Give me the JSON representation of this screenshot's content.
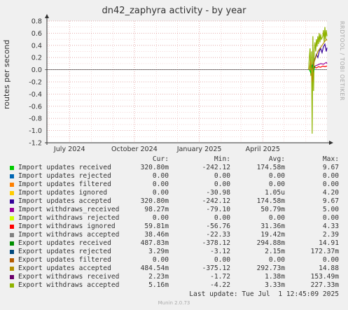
{
  "title": "dn42_zaphyra activity - by year",
  "watermark": "RRDTOOL / TOBI OETIKER",
  "footer": "Munin 2.0.73",
  "last_update": "Last update: Tue Jul  1 12:45:09 2025",
  "legend_headers": {
    "cur": "Cur:",
    "min": "Min:",
    "avg": "Avg:",
    "max": "Max:"
  },
  "legend": [
    {
      "name": "Import updates received",
      "color": "#00cc00",
      "cur": "320.80m",
      "min": "-242.12",
      "avg": "174.58m",
      "max": "9.67"
    },
    {
      "name": "Import updates rejected",
      "color": "#0066b3",
      "cur": "0.00",
      "min": "0.00",
      "avg": "0.00",
      "max": "0.00"
    },
    {
      "name": "Import updates filtered",
      "color": "#ff8000",
      "cur": "0.00",
      "min": "0.00",
      "avg": "0.00",
      "max": "0.00"
    },
    {
      "name": "Import updates ignored",
      "color": "#ffcc00",
      "cur": "0.00",
      "min": "-30.98",
      "avg": "1.05u",
      "max": "4.20"
    },
    {
      "name": "Import updates accepted",
      "color": "#330099",
      "cur": "320.80m",
      "min": "-242.12",
      "avg": "174.58m",
      "max": "9.67"
    },
    {
      "name": "Import withdraws_received",
      "color": "#990099",
      "cur": "98.27m",
      "min": "-79.10",
      "avg": "50.79m",
      "max": "5.00"
    },
    {
      "name": "Import withdraws rejected",
      "color": "#ccff00",
      "cur": "0.00",
      "min": "0.00",
      "avg": "0.00",
      "max": "0.00"
    },
    {
      "name": "Import withdraws ignored",
      "color": "#ff0000",
      "cur": "59.81m",
      "min": "-56.76",
      "avg": "31.36m",
      "max": "4.33"
    },
    {
      "name": "Import withdraws accepted",
      "color": "#808080",
      "cur": "38.46m",
      "min": "-22.33",
      "avg": "19.42m",
      "max": "2.39"
    },
    {
      "name": "Export updates received",
      "color": "#008f00",
      "cur": "487.83m",
      "min": "-378.12",
      "avg": "294.88m",
      "max": "14.91"
    },
    {
      "name": "Export updates rejected",
      "color": "#00487d",
      "cur": "3.29m",
      "min": "-3.12",
      "avg": "2.15m",
      "max": "172.37m"
    },
    {
      "name": "Export updates filtered",
      "color": "#b35a00",
      "cur": "0.00",
      "min": "0.00",
      "avg": "0.00",
      "max": "0.00"
    },
    {
      "name": "Export updates accepted",
      "color": "#b38f00",
      "cur": "484.54m",
      "min": "-375.12",
      "avg": "292.73m",
      "max": "14.88"
    },
    {
      "name": "Export withdraws received",
      "color": "#6b006b",
      "cur": "2.23m",
      "min": "-1.72",
      "avg": "1.38m",
      "max": "153.49m"
    },
    {
      "name": "Export withdraws accepted",
      "color": "#8fb300",
      "cur": "5.16m",
      "min": "-4.22",
      "avg": "3.33m",
      "max": "227.33m"
    }
  ],
  "chart_data": {
    "type": "line",
    "title": "dn42_zaphyra activity - by year",
    "xlabel": "",
    "ylabel": "routes per second",
    "ylim": [
      -1.2,
      0.8
    ],
    "yticks": [
      0.8,
      0.6,
      0.4,
      0.2,
      0.0,
      -0.2,
      -0.4,
      -0.6,
      -0.8,
      -1.0,
      -1.2
    ],
    "ytick_labels": [
      "0.8",
      "0.6",
      "0.4",
      "0.2",
      "0.0",
      "-0.2",
      "-0.4",
      "-0.6",
      "-0.8",
      "-1.0",
      "-1.2"
    ],
    "xlim": [
      "2024-05-30",
      "2025-07-01"
    ],
    "xticks": [
      "2024-07-01",
      "2024-10-01",
      "2025-01-01",
      "2025-04-01"
    ],
    "xtick_labels": [
      "July 2024",
      "October 2024",
      "January 2025",
      "April 2025"
    ],
    "grid": true,
    "series": [
      {
        "name": "Export withdraws accepted",
        "color": "#8fb300",
        "x": [
          "2025-06-05",
          "2025-06-06",
          "2025-06-07",
          "2025-06-08",
          "2025-06-09",
          "2025-06-10",
          "2025-06-11",
          "2025-06-12",
          "2025-06-13",
          "2025-06-14",
          "2025-06-15",
          "2025-06-16",
          "2025-06-17",
          "2025-06-18",
          "2025-06-19",
          "2025-06-20",
          "2025-06-21",
          "2025-06-22",
          "2025-06-23",
          "2025-06-24",
          "2025-06-25",
          "2025-06-26",
          "2025-06-27",
          "2025-06-28",
          "2025-06-29",
          "2025-06-30",
          "2025-07-01"
        ],
        "values": [
          0.0,
          0.2,
          0.35,
          -0.1,
          0.3,
          -1.05,
          0.55,
          -0.35,
          0.3,
          0.45,
          0.3,
          0.5,
          0.38,
          0.55,
          0.42,
          0.6,
          0.45,
          0.58,
          0.5,
          0.52,
          0.55,
          0.65,
          0.45,
          0.7,
          0.5,
          0.65,
          0.55
        ]
      },
      {
        "name": "Import updates accepted",
        "color": "#330099",
        "x": [
          "2025-06-10",
          "2025-06-12",
          "2025-06-14",
          "2025-06-16",
          "2025-06-18",
          "2025-06-20",
          "2025-06-22",
          "2025-06-24",
          "2025-06-26",
          "2025-06-28",
          "2025-06-30",
          "2025-07-01"
        ],
        "values": [
          0.05,
          0.1,
          0.18,
          0.25,
          0.2,
          0.3,
          0.35,
          0.28,
          0.38,
          0.42,
          0.3,
          0.36
        ]
      },
      {
        "name": "Import withdraws ignored",
        "color": "#ff0000",
        "x": [
          "2025-06-10",
          "2025-06-13",
          "2025-06-16",
          "2025-06-19",
          "2025-06-22",
          "2025-06-25",
          "2025-06-28",
          "2025-07-01"
        ],
        "values": [
          0.02,
          0.04,
          0.03,
          0.05,
          0.04,
          0.06,
          0.05,
          0.06
        ]
      },
      {
        "name": "Import withdraws_received",
        "color": "#990099",
        "x": [
          "2025-06-10",
          "2025-06-14",
          "2025-06-18",
          "2025-06-22",
          "2025-06-26",
          "2025-06-30",
          "2025-07-01"
        ],
        "values": [
          0.03,
          0.06,
          0.08,
          0.1,
          0.09,
          0.12,
          0.1
        ]
      },
      {
        "name": "Import updates received",
        "color": "#00cc00",
        "x": [
          "2025-06-06",
          "2025-06-08",
          "2025-06-10",
          "2025-06-12",
          "2025-06-14"
        ],
        "values": [
          0.0,
          -0.05,
          0.08,
          -0.02,
          0.06
        ]
      },
      {
        "name": "Export updates accepted",
        "color": "#b38f00",
        "x": [
          "2025-06-06",
          "2025-06-08",
          "2025-06-10",
          "2025-06-12",
          "2025-06-15",
          "2025-06-18",
          "2025-06-21",
          "2025-06-24",
          "2025-06-27",
          "2025-06-30",
          "2025-07-01"
        ],
        "values": [
          0.0,
          0.15,
          -0.2,
          0.1,
          0.2,
          0.3,
          0.35,
          0.4,
          0.45,
          0.5,
          0.48
        ]
      }
    ]
  }
}
